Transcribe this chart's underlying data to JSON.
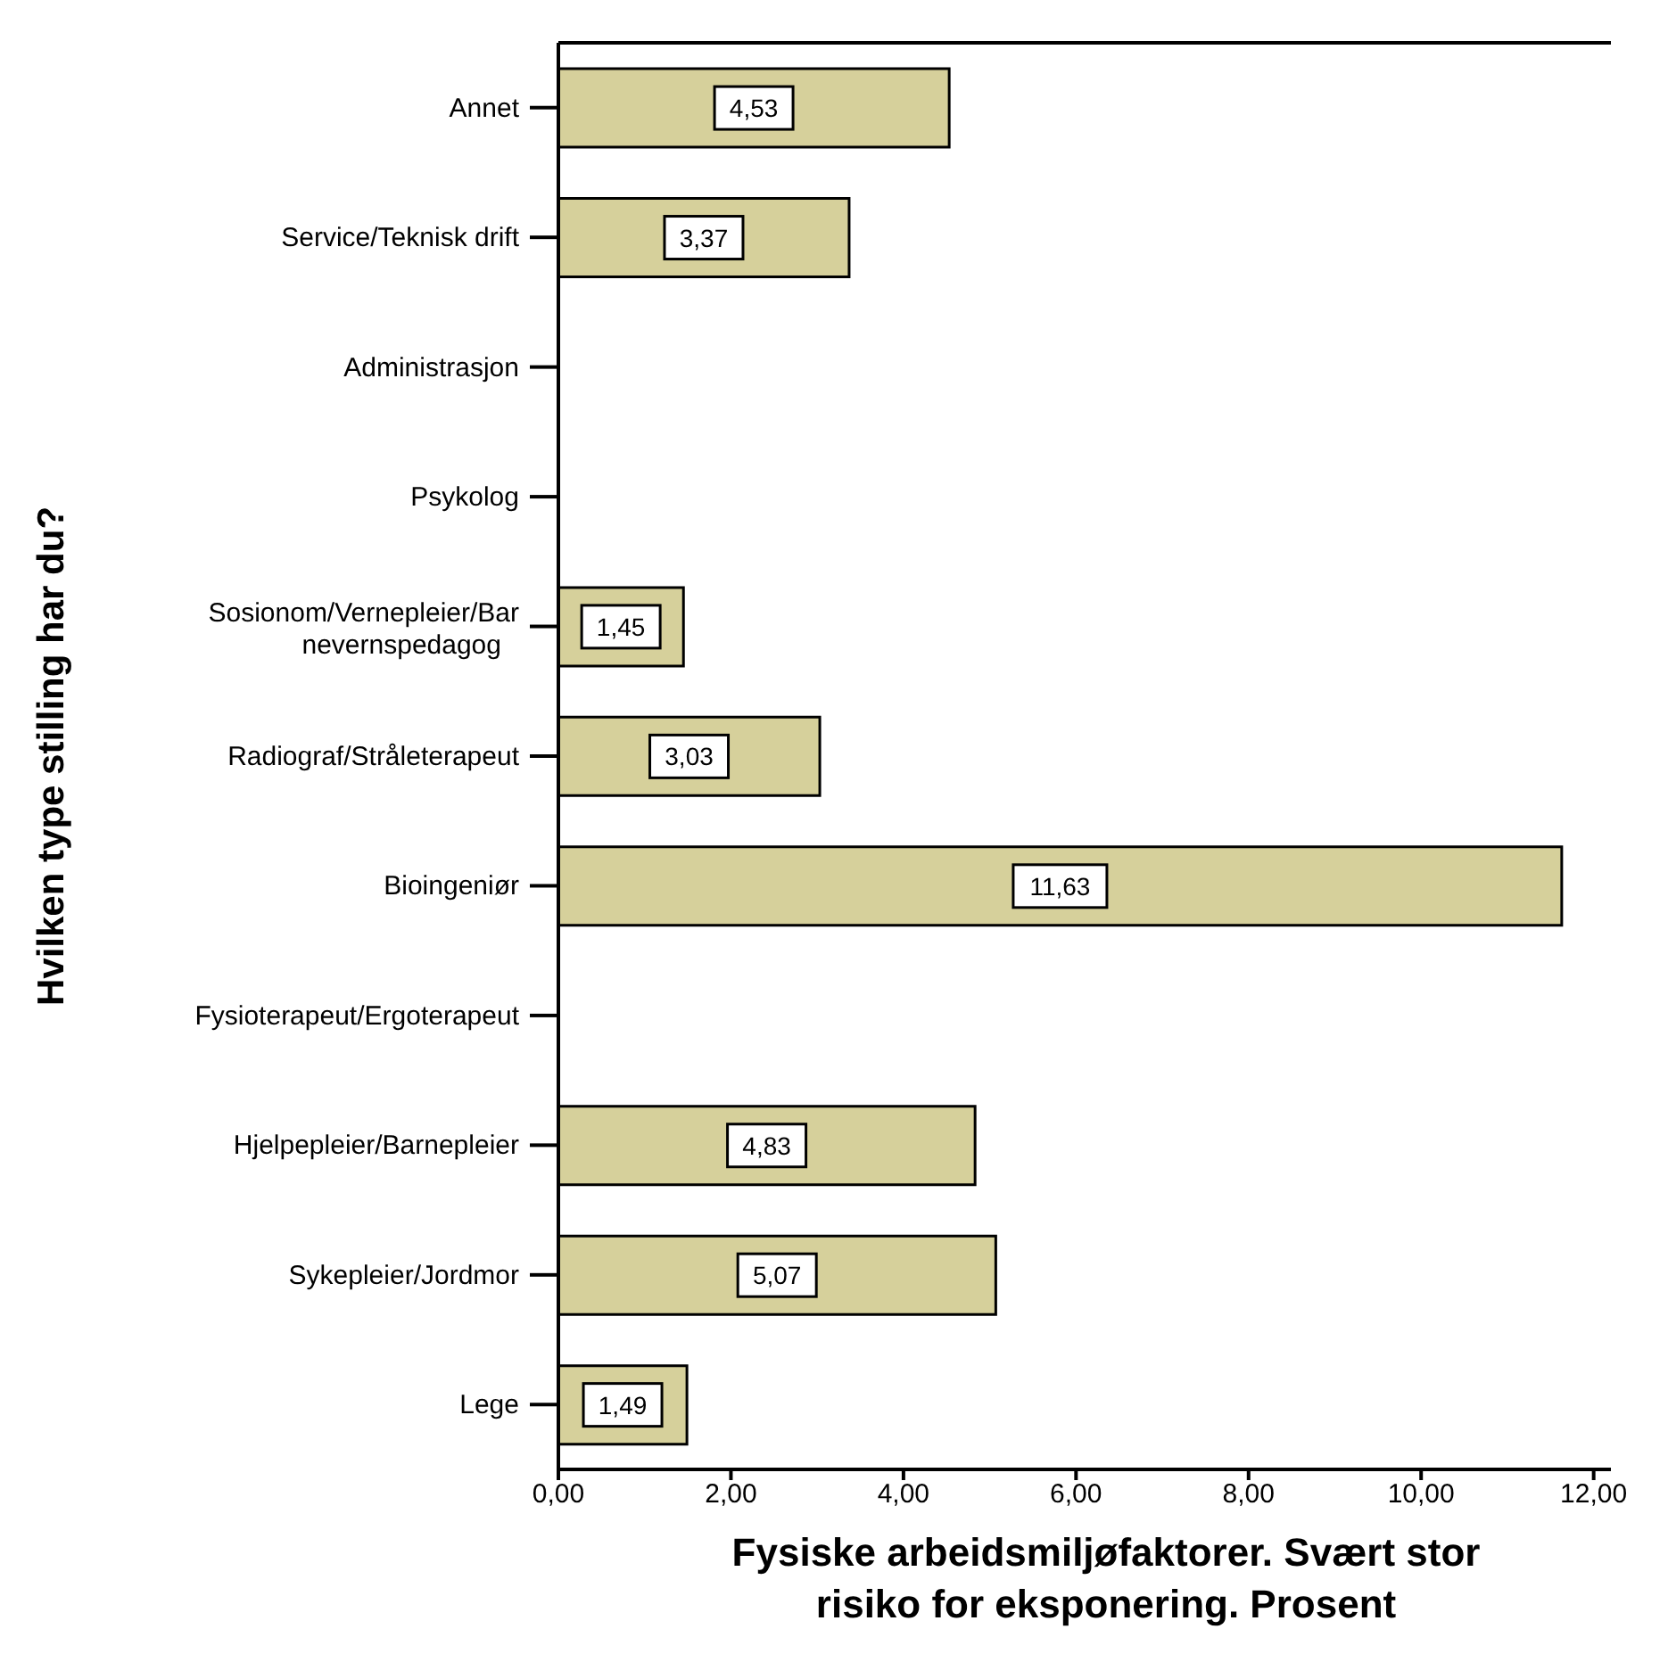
{
  "chart_data": {
    "type": "bar",
    "orientation": "horizontal",
    "xlabel": "Fysiske arbeidsmiljøfaktorer. Svært stor risiko for eksponering. Prosent",
    "ylabel": "Hvilken type stilling har du?",
    "categories": [
      "Annet",
      "Service/Teknisk drift",
      "Administrasjon",
      "Psykolog",
      "Sosionom/Vernepleier/Barnevernspedagog",
      "Radiograf/Stråleterapeut",
      "Bioingeniør",
      "Fysioterapeut/Ergoterapeut",
      "Hjelpepleier/Barnepleier",
      "Sykepleier/Jordmor",
      "Lege"
    ],
    "values": [
      4.53,
      3.37,
      null,
      null,
      1.45,
      3.03,
      11.63,
      null,
      4.83,
      5.07,
      1.49
    ],
    "value_labels": [
      "4,53",
      "3,37",
      null,
      null,
      "1,45",
      "3,03",
      "11,63",
      null,
      "4,83",
      "5,07",
      "1,49"
    ],
    "color": "#d6d09b",
    "xlim": [
      0,
      12.2
    ],
    "xticks": [
      {
        "value": 0,
        "label": "0,00"
      },
      {
        "value": 2,
        "label": "2,00"
      },
      {
        "value": 4,
        "label": "4,00"
      },
      {
        "value": 6,
        "label": "6,00"
      },
      {
        "value": 8,
        "label": "8,00"
      },
      {
        "value": 10,
        "label": "10,00"
      },
      {
        "value": 12,
        "label": "12,00"
      }
    ],
    "grid": false
  }
}
